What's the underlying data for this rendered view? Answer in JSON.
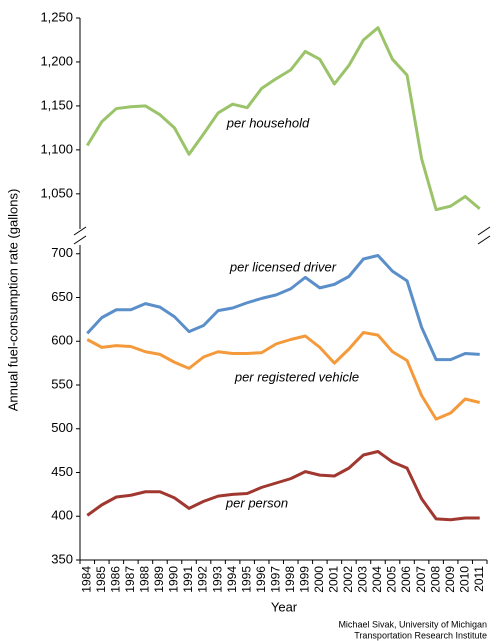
{
  "chart_data": [
    {
      "type": "line",
      "ylabel": "Annual fuel-consumption rate (gallons)",
      "ylim": [
        1010,
        1250
      ],
      "yticks": [
        {
          "value": 1050,
          "label": "1,050"
        },
        {
          "value": 1100,
          "label": "1,100"
        },
        {
          "value": 1150,
          "label": "1,150"
        },
        {
          "value": 1200,
          "label": "1,200"
        },
        {
          "value": 1250,
          "label": "1,250"
        }
      ],
      "series": [
        {
          "name": "per household",
          "color": "#9bc46a",
          "values": [
            1105,
            1132,
            1147,
            1149,
            1150,
            1140,
            1125,
            1095,
            1118,
            1142,
            1152,
            1148,
            1170,
            1181,
            1191,
            1212,
            1203,
            1175,
            1196,
            1225,
            1239,
            1203,
            1185,
            1090,
            1032,
            1036,
            1047,
            1033
          ]
        }
      ]
    },
    {
      "type": "line",
      "xlabel": "Year",
      "categories": [
        "1984",
        "1985",
        "1986",
        "1987",
        "1988",
        "1989",
        "1990",
        "1991",
        "1992",
        "1993",
        "1994",
        "1995",
        "1996",
        "1997",
        "1998",
        "1999",
        "2000",
        "2001",
        "2002",
        "2003",
        "2004",
        "2005",
        "2006",
        "2007",
        "2008",
        "2009",
        "2010",
        "2011"
      ],
      "ylim": [
        350,
        710
      ],
      "yticks": [
        350,
        400,
        450,
        500,
        550,
        600,
        650,
        700
      ],
      "series": [
        {
          "name": "per licensed driver",
          "color": "#5b8fc9",
          "values": [
            609,
            627,
            636,
            636,
            643,
            639,
            628,
            611,
            618,
            635,
            638,
            644,
            649,
            653,
            660,
            673,
            661,
            665,
            674,
            694,
            698,
            680,
            669,
            616,
            579,
            579,
            586,
            585
          ]
        },
        {
          "name": "per registered vehicle",
          "color": "#f49a3c",
          "values": [
            602,
            593,
            595,
            594,
            588,
            585,
            576,
            569,
            582,
            588,
            586,
            586,
            587,
            597,
            602,
            606,
            593,
            575,
            591,
            610,
            607,
            588,
            578,
            538,
            511,
            518,
            534,
            530
          ]
        },
        {
          "name": "per person",
          "color": "#a03830",
          "values": [
            401,
            413,
            422,
            424,
            428,
            428,
            421,
            409,
            417,
            423,
            425,
            426,
            433,
            438,
            443,
            451,
            447,
            446,
            455,
            470,
            474,
            462,
            455,
            420,
            397,
            396,
            398,
            398
          ]
        }
      ],
      "source": [
        "Michael Sivak, University of Michigan",
        "Transportation Research Institute"
      ]
    }
  ]
}
